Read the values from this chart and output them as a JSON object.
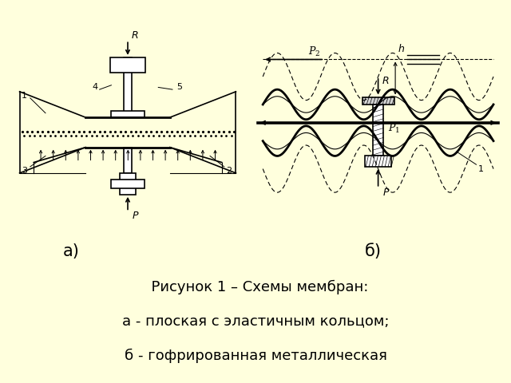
{
  "background_color": "#FFFFDD",
  "diagram_bg": "#FFFFFF",
  "line_color": "#000000",
  "text_color": "#000000",
  "label_a": "а)",
  "label_b": "б)",
  "caption_line1": "  Рисунок 1 – Схемы мембран:",
  "caption_line2": "а - плоская с эластичным кольцом;",
  "caption_line3": "б - гофрированная металлическая",
  "font_size_caption": 13,
  "font_size_label": 15
}
